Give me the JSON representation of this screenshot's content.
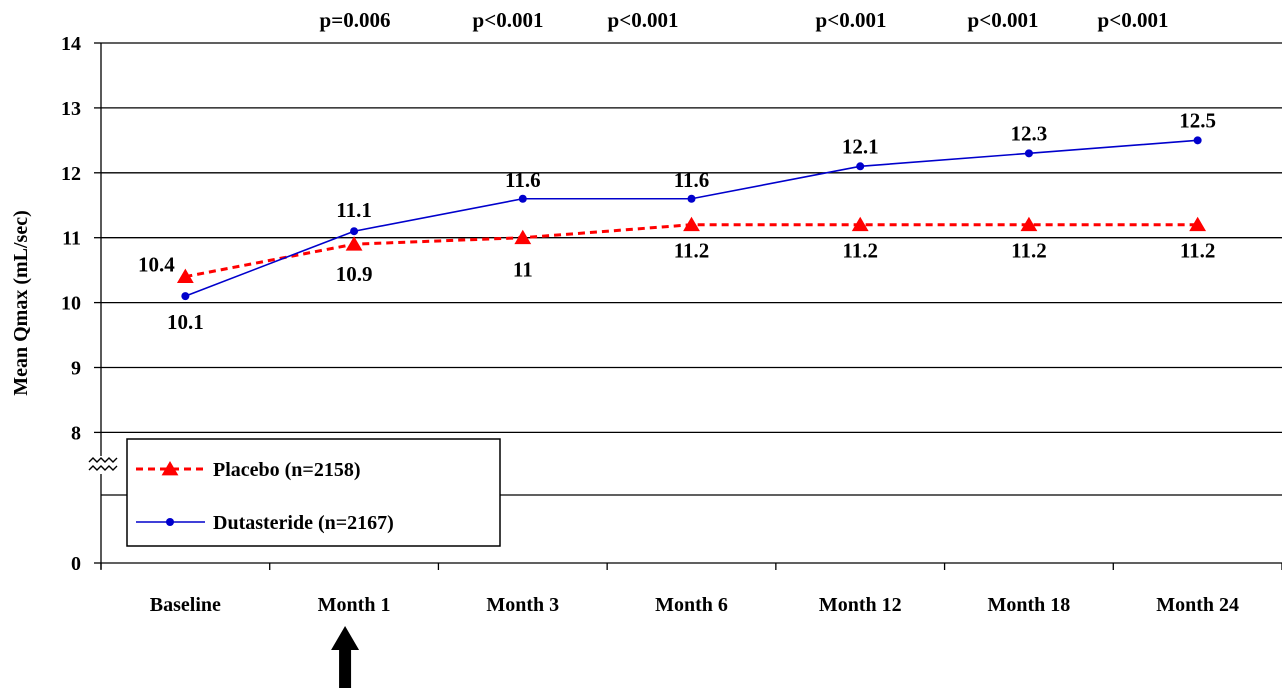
{
  "chart_data": {
    "type": "line",
    "categories": [
      "Baseline",
      "Month 1",
      "Month 3",
      "Month 6",
      "Month 12",
      "Month 18",
      "Month 24"
    ],
    "series": [
      {
        "name": "Placebo (n=2158)",
        "values": [
          10.4,
          10.9,
          11,
          11.2,
          11.2,
          11.2,
          11.2
        ],
        "labels": [
          "10.4",
          "10.9",
          "11",
          "11.2",
          "11.2",
          "11.2",
          "11.2"
        ],
        "color": "#ff0000",
        "line_style": "dashed",
        "marker": "triangle"
      },
      {
        "name": "Dutasteride (n=2167)",
        "values": [
          10.1,
          11.1,
          11.6,
          11.6,
          12.1,
          12.3,
          12.5
        ],
        "labels": [
          "10.1",
          "11.1",
          "11.6",
          "11.6",
          "12.1",
          "12.3",
          "12.5"
        ],
        "color": "#0000cc",
        "line_style": "solid",
        "marker": "circle"
      }
    ],
    "ylabel": "Mean Qmax (mL/sec)",
    "xlabel": "",
    "y_ticks": [
      "0",
      "8",
      "9",
      "10",
      "11",
      "12",
      "13",
      "14"
    ],
    "ylim": [
      7,
      14
    ],
    "y_axis_break": "between 0 and 8",
    "p_values": [
      "p=0.006",
      "p<0.001",
      "p<0.001",
      "p<0.001",
      "p<0.001",
      "p<0.001"
    ],
    "p_value_categories": [
      "Month 1",
      "Month 3",
      "Month 6",
      "Month 12",
      "Month 18",
      "Month 24"
    ],
    "annotation_arrow": "pointing up at Month 1",
    "grid": "horizontal",
    "legend_placement": "lower-left"
  }
}
